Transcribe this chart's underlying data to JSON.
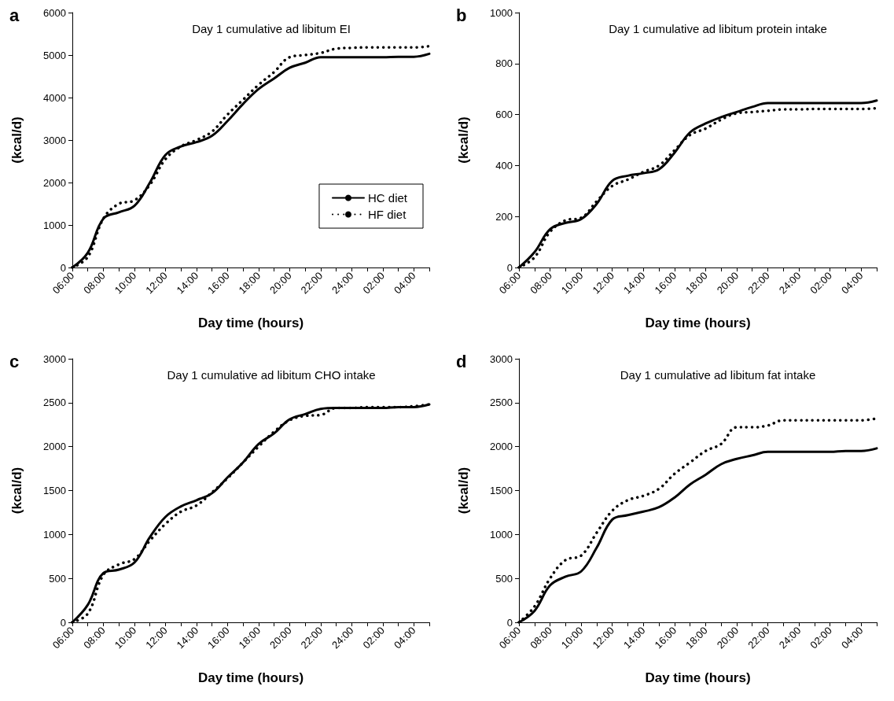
{
  "chart_data": [
    {
      "type": "line",
      "title": "Day 1 cumulative ad libitum EI",
      "xlabel": "Day time (hours)",
      "ylabel": "(kcal/d)",
      "annotations": [
        "a"
      ],
      "categories": [
        "06:00",
        null,
        "08:00",
        null,
        "10:00",
        null,
        "12:00",
        null,
        "14:00",
        null,
        "16:00",
        null,
        "18:00",
        null,
        "20:00",
        null,
        "22:00",
        null,
        "24:00",
        null,
        "02:00",
        null,
        "04:00",
        null
      ],
      "series": [
        {
          "name": "HC diet",
          "color": "#000000",
          "line_style": "solid",
          "values": [
            0,
            350,
            1150,
            1300,
            1450,
            2000,
            2650,
            2850,
            2950,
            3100,
            3450,
            3850,
            4200,
            4450,
            4700,
            4820,
            4950,
            4950,
            4950,
            4950,
            4950,
            4960,
            4960,
            5030
          ]
        },
        {
          "name": "HF diet",
          "color": "#000000",
          "line_style": "dotted",
          "values": [
            0,
            250,
            1150,
            1500,
            1580,
            1950,
            2550,
            2850,
            3000,
            3200,
            3600,
            3950,
            4300,
            4600,
            4950,
            5000,
            5050,
            5150,
            5170,
            5180,
            5180,
            5180,
            5180,
            5210
          ]
        }
      ],
      "ylim": [
        0,
        6000
      ],
      "yticks": [
        0,
        1000,
        2000,
        3000,
        4000,
        5000,
        6000
      ],
      "grid": false,
      "legend": "bottom right",
      "marker": "none"
    },
    {
      "type": "line",
      "title": "Day 1 cumulative ad libitum protein intake",
      "xlabel": "Day time (hours)",
      "ylabel": "(kcal/d)",
      "annotations": [
        "b"
      ],
      "categories": [
        "06:00",
        null,
        "08:00",
        null,
        "10:00",
        null,
        "12:00",
        null,
        "14:00",
        null,
        "16:00",
        null,
        "18:00",
        null,
        "20:00",
        null,
        "22:00",
        null,
        "24:00",
        null,
        "02:00",
        null,
        "04:00",
        null
      ],
      "series": [
        {
          "color": "#000000",
          "line_style": "solid",
          "values": [
            0,
            60,
            150,
            175,
            190,
            250,
            340,
            360,
            370,
            385,
            450,
            530,
            565,
            590,
            610,
            630,
            645,
            645,
            645,
            645,
            645,
            645,
            645,
            655
          ]
        },
        {
          "color": "#000000",
          "line_style": "dotted",
          "values": [
            0,
            40,
            140,
            185,
            195,
            260,
            320,
            345,
            375,
            400,
            460,
            520,
            545,
            580,
            605,
            610,
            615,
            620,
            620,
            622,
            622,
            622,
            622,
            625
          ]
        }
      ],
      "ylim": [
        0,
        1000
      ],
      "yticks": [
        0,
        200,
        400,
        600,
        800,
        1000
      ],
      "grid": false,
      "legend": false,
      "marker": "none"
    },
    {
      "type": "line",
      "title": "Day 1 cumulative ad libitum CHO intake",
      "xlabel": "Day time (hours)",
      "ylabel": "(kcal/d)",
      "annotations": [
        "c"
      ],
      "categories": [
        "06:00",
        null,
        "08:00",
        null,
        "10:00",
        null,
        "12:00",
        null,
        "14:00",
        null,
        "16:00",
        null,
        "18:00",
        null,
        "20:00",
        null,
        "22:00",
        null,
        "24:00",
        null,
        "02:00",
        null,
        "04:00",
        null
      ],
      "series": [
        {
          "color": "#000000",
          "line_style": "solid",
          "values": [
            0,
            200,
            560,
            600,
            680,
            970,
            1200,
            1320,
            1390,
            1470,
            1650,
            1820,
            2030,
            2150,
            2310,
            2370,
            2430,
            2440,
            2440,
            2440,
            2440,
            2450,
            2450,
            2480
          ]
        },
        {
          "color": "#000000",
          "line_style": "dotted",
          "values": [
            0,
            100,
            540,
            660,
            720,
            930,
            1120,
            1260,
            1330,
            1480,
            1640,
            1820,
            2000,
            2170,
            2300,
            2350,
            2360,
            2440,
            2440,
            2450,
            2450,
            2450,
            2460,
            2480
          ]
        }
      ],
      "ylim": [
        0,
        3000
      ],
      "yticks": [
        0,
        500,
        1000,
        1500,
        2000,
        2500,
        3000
      ],
      "grid": false,
      "legend": false,
      "marker": "none"
    },
    {
      "type": "line",
      "title": "Day 1 cumulative ad libitum fat intake",
      "xlabel": "Day time (hours)",
      "ylabel": "(kcal/d)",
      "annotations": [
        "d"
      ],
      "categories": [
        "06:00",
        null,
        "08:00",
        null,
        "10:00",
        null,
        "12:00",
        null,
        "14:00",
        null,
        "16:00",
        null,
        "18:00",
        null,
        "20:00",
        null,
        "22:00",
        null,
        "24:00",
        null,
        "02:00",
        null,
        "04:00",
        null
      ],
      "series": [
        {
          "color": "#000000",
          "line_style": "solid",
          "values": [
            0,
            130,
            420,
            520,
            580,
            850,
            1170,
            1220,
            1260,
            1310,
            1420,
            1570,
            1680,
            1800,
            1860,
            1900,
            1940,
            1940,
            1940,
            1940,
            1940,
            1950,
            1950,
            1980
          ]
        },
        {
          "color": "#000000",
          "line_style": "dotted",
          "values": [
            0,
            180,
            500,
            710,
            760,
            1020,
            1270,
            1390,
            1440,
            1520,
            1690,
            1820,
            1950,
            2030,
            2220,
            2220,
            2240,
            2300,
            2300,
            2300,
            2300,
            2300,
            2300,
            2320
          ]
        }
      ],
      "ylim": [
        0,
        3000
      ],
      "yticks": [
        0,
        500,
        1000,
        1500,
        2000,
        2500,
        3000
      ],
      "grid": false,
      "legend": false,
      "marker": "none"
    }
  ]
}
